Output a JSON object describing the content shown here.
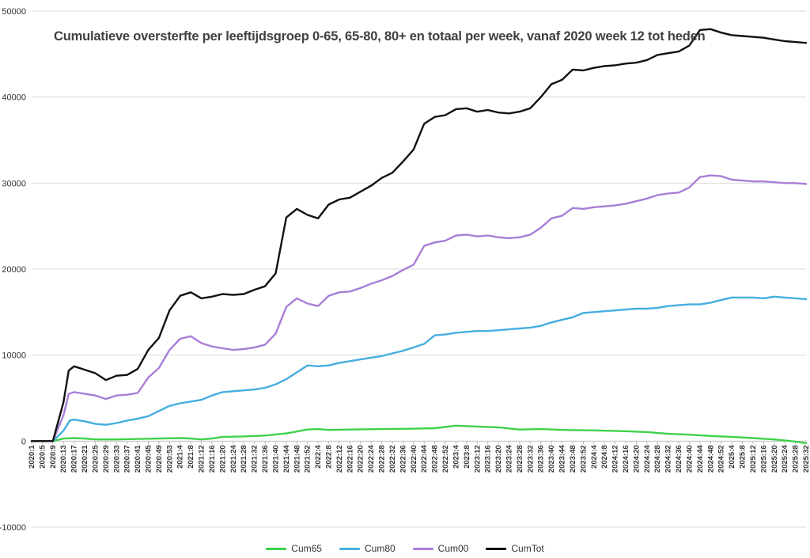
{
  "chart_data": {
    "type": "line",
    "title": "Cumulatieve oversterfte per leeftijdsgroep 0-65, 65-80, 80+ en totaal per week, vanaf 2020 week 12 tot heden",
    "xlabel": "",
    "ylabel": "",
    "ylim": [
      -10000,
      50000
    ],
    "yticks": [
      "-10000",
      "0",
      "10000",
      "20000",
      "30000",
      "40000",
      "50000"
    ],
    "grid": true,
    "legend_position": "bottom",
    "x_tick_labels": [
      "2020:1",
      "2020:5",
      "2020:9",
      "2020:13",
      "2020:17",
      "2020:21",
      "2020:25",
      "2020:29",
      "2020:33",
      "2020:37",
      "2020:41",
      "2020:45",
      "2020:49",
      "2020:53",
      "2021:4",
      "2021:8",
      "2021:12",
      "2021:16",
      "2021:20",
      "2021:24",
      "2021:28",
      "2021:32",
      "2021:36",
      "2021:40",
      "2021:44",
      "2021:48",
      "2021:52",
      "2022:4",
      "2022:8",
      "2022:12",
      "2022:16",
      "2022:20",
      "2022:24",
      "2022:28",
      "2022:32",
      "2022:36",
      "2022:40",
      "2022:44",
      "2022:48",
      "2022:52",
      "2023:4",
      "2023:8",
      "2023:12",
      "2023:16",
      "2023:20",
      "2023:24",
      "2023:28",
      "2023:32",
      "2023:36",
      "2023:40",
      "2023:44",
      "2023:48",
      "2023:52",
      "2024:4",
      "2024:8",
      "2024:12",
      "2024:16",
      "2024:20",
      "2024:24",
      "2024:28",
      "2024:32",
      "2024:36",
      "2024:40",
      "2024:44",
      "2024:48",
      "2024:52",
      "2025:4",
      "2025:8",
      "2025:12",
      "2025:16",
      "2025:20",
      "2025:24",
      "2025:28",
      "2025:32"
    ],
    "series": [
      {
        "name": "Cum65",
        "color": "#3fd14a",
        "points": [
          [
            0,
            0
          ],
          [
            2,
            0
          ],
          [
            3,
            300
          ],
          [
            4,
            350
          ],
          [
            5,
            300
          ],
          [
            6,
            200
          ],
          [
            8,
            200
          ],
          [
            10,
            250
          ],
          [
            12,
            300
          ],
          [
            14,
            350
          ],
          [
            15,
            300
          ],
          [
            16,
            200
          ],
          [
            17,
            300
          ],
          [
            18,
            500
          ],
          [
            20,
            550
          ],
          [
            22,
            650
          ],
          [
            24,
            900
          ],
          [
            26,
            1350
          ],
          [
            27,
            1400
          ],
          [
            28,
            1300
          ],
          [
            30,
            1350
          ],
          [
            33,
            1400
          ],
          [
            36,
            1450
          ],
          [
            38,
            1500
          ],
          [
            40,
            1800
          ],
          [
            42,
            1700
          ],
          [
            44,
            1600
          ],
          [
            46,
            1350
          ],
          [
            48,
            1400
          ],
          [
            50,
            1300
          ],
          [
            53,
            1250
          ],
          [
            56,
            1150
          ],
          [
            58,
            1050
          ],
          [
            60,
            850
          ],
          [
            62,
            750
          ],
          [
            64,
            600
          ],
          [
            66,
            500
          ],
          [
            68,
            350
          ],
          [
            70,
            200
          ],
          [
            72,
            -50
          ],
          [
            73,
            -250
          ]
        ]
      },
      {
        "name": "Cum80",
        "color": "#45aee0",
        "points": [
          [
            0,
            0
          ],
          [
            2,
            0
          ],
          [
            3,
            1200
          ],
          [
            3.6,
            2400
          ],
          [
            4,
            2500
          ],
          [
            5,
            2300
          ],
          [
            6,
            2000
          ],
          [
            7,
            1900
          ],
          [
            8,
            2100
          ],
          [
            9,
            2400
          ],
          [
            10,
            2600
          ],
          [
            11,
            2900
          ],
          [
            12,
            3500
          ],
          [
            13,
            4100
          ],
          [
            14,
            4400
          ],
          [
            15,
            4600
          ],
          [
            16,
            4800
          ],
          [
            17,
            5300
          ],
          [
            18,
            5700
          ],
          [
            19,
            5800
          ],
          [
            20,
            5900
          ],
          [
            21,
            6000
          ],
          [
            22,
            6200
          ],
          [
            23,
            6600
          ],
          [
            24,
            7200
          ],
          [
            25,
            8000
          ],
          [
            26,
            8800
          ],
          [
            27,
            8700
          ],
          [
            28,
            8800
          ],
          [
            29,
            9100
          ],
          [
            30,
            9300
          ],
          [
            31,
            9500
          ],
          [
            32,
            9700
          ],
          [
            33,
            9900
          ],
          [
            34,
            10200
          ],
          [
            35,
            10500
          ],
          [
            36,
            10900
          ],
          [
            37,
            11300
          ],
          [
            38,
            12300
          ],
          [
            39,
            12400
          ],
          [
            40,
            12600
          ],
          [
            41,
            12700
          ],
          [
            42,
            12800
          ],
          [
            43,
            12800
          ],
          [
            44,
            12900
          ],
          [
            45,
            13000
          ],
          [
            46,
            13100
          ],
          [
            47,
            13200
          ],
          [
            48,
            13400
          ],
          [
            49,
            13800
          ],
          [
            50,
            14100
          ],
          [
            51,
            14400
          ],
          [
            52,
            14900
          ],
          [
            53,
            15000
          ],
          [
            54,
            15100
          ],
          [
            55,
            15200
          ],
          [
            56,
            15300
          ],
          [
            57,
            15400
          ],
          [
            58,
            15400
          ],
          [
            59,
            15500
          ],
          [
            60,
            15700
          ],
          [
            61,
            15800
          ],
          [
            62,
            15900
          ],
          [
            63,
            15900
          ],
          [
            64,
            16100
          ],
          [
            65,
            16400
          ],
          [
            66,
            16700
          ],
          [
            67,
            16700
          ],
          [
            68,
            16700
          ],
          [
            69,
            16600
          ],
          [
            70,
            16800
          ],
          [
            71,
            16700
          ],
          [
            72,
            16600
          ],
          [
            73,
            16500
          ]
        ]
      },
      {
        "name": "Cum00",
        "color": "#a87ed8",
        "points": [
          [
            0,
            0
          ],
          [
            2,
            0
          ],
          [
            3,
            3000
          ],
          [
            3.5,
            5500
          ],
          [
            4,
            5700
          ],
          [
            5,
            5500
          ],
          [
            6,
            5300
          ],
          [
            7,
            4900
          ],
          [
            8,
            5300
          ],
          [
            9,
            5400
          ],
          [
            10,
            5600
          ],
          [
            11,
            7400
          ],
          [
            12,
            8500
          ],
          [
            13,
            10600
          ],
          [
            14,
            11900
          ],
          [
            15,
            12200
          ],
          [
            16,
            11400
          ],
          [
            17,
            11000
          ],
          [
            18,
            10800
          ],
          [
            19,
            10600
          ],
          [
            20,
            10700
          ],
          [
            21,
            10900
          ],
          [
            22,
            11200
          ],
          [
            23,
            12500
          ],
          [
            24,
            15600
          ],
          [
            25,
            16600
          ],
          [
            26,
            16000
          ],
          [
            27,
            15700
          ],
          [
            28,
            16900
          ],
          [
            29,
            17300
          ],
          [
            30,
            17400
          ],
          [
            31,
            17800
          ],
          [
            32,
            18300
          ],
          [
            33,
            18700
          ],
          [
            34,
            19200
          ],
          [
            35,
            19900
          ],
          [
            36,
            20500
          ],
          [
            37,
            22700
          ],
          [
            38,
            23100
          ],
          [
            39,
            23300
          ],
          [
            40,
            23900
          ],
          [
            41,
            24000
          ],
          [
            42,
            23800
          ],
          [
            43,
            23900
          ],
          [
            44,
            23700
          ],
          [
            45,
            23600
          ],
          [
            46,
            23700
          ],
          [
            47,
            24000
          ],
          [
            48,
            24800
          ],
          [
            49,
            25900
          ],
          [
            50,
            26200
          ],
          [
            51,
            27100
          ],
          [
            52,
            27000
          ],
          [
            53,
            27200
          ],
          [
            54,
            27300
          ],
          [
            55,
            27400
          ],
          [
            56,
            27600
          ],
          [
            57,
            27900
          ],
          [
            58,
            28200
          ],
          [
            59,
            28600
          ],
          [
            60,
            28800
          ],
          [
            61,
            28900
          ],
          [
            62,
            29500
          ],
          [
            63,
            30700
          ],
          [
            64,
            30900
          ],
          [
            65,
            30800
          ],
          [
            66,
            30400
          ],
          [
            67,
            30300
          ],
          [
            68,
            30200
          ],
          [
            69,
            30200
          ],
          [
            70,
            30100
          ],
          [
            71,
            30000
          ],
          [
            72,
            30000
          ],
          [
            73,
            29900
          ]
        ]
      },
      {
        "name": "CumTot",
        "color": "#111111",
        "points": [
          [
            0,
            0
          ],
          [
            2,
            0
          ],
          [
            3,
            4500
          ],
          [
            3.5,
            8200
          ],
          [
            4,
            8700
          ],
          [
            5,
            8300
          ],
          [
            6,
            7900
          ],
          [
            7,
            7100
          ],
          [
            8,
            7600
          ],
          [
            9,
            7700
          ],
          [
            10,
            8400
          ],
          [
            11,
            10600
          ],
          [
            12,
            12000
          ],
          [
            13,
            15200
          ],
          [
            14,
            16900
          ],
          [
            15,
            17300
          ],
          [
            16,
            16600
          ],
          [
            17,
            16800
          ],
          [
            18,
            17100
          ],
          [
            19,
            17000
          ],
          [
            20,
            17100
          ],
          [
            21,
            17600
          ],
          [
            22,
            18000
          ],
          [
            23,
            19500
          ],
          [
            24,
            26000
          ],
          [
            25,
            27000
          ],
          [
            26,
            26300
          ],
          [
            27,
            25900
          ],
          [
            28,
            27500
          ],
          [
            29,
            28100
          ],
          [
            30,
            28300
          ],
          [
            31,
            29000
          ],
          [
            32,
            29700
          ],
          [
            33,
            30600
          ],
          [
            34,
            31200
          ],
          [
            35,
            32500
          ],
          [
            36,
            33900
          ],
          [
            37,
            36900
          ],
          [
            38,
            37700
          ],
          [
            39,
            37900
          ],
          [
            40,
            38600
          ],
          [
            41,
            38700
          ],
          [
            42,
            38300
          ],
          [
            43,
            38500
          ],
          [
            44,
            38200
          ],
          [
            45,
            38100
          ],
          [
            46,
            38300
          ],
          [
            47,
            38700
          ],
          [
            48,
            40000
          ],
          [
            49,
            41500
          ],
          [
            50,
            42000
          ],
          [
            51,
            43200
          ],
          [
            52,
            43100
          ],
          [
            53,
            43400
          ],
          [
            54,
            43600
          ],
          [
            55,
            43700
          ],
          [
            56,
            43900
          ],
          [
            57,
            44000
          ],
          [
            58,
            44300
          ],
          [
            59,
            44900
          ],
          [
            60,
            45100
          ],
          [
            61,
            45300
          ],
          [
            62,
            46000
          ],
          [
            63,
            47800
          ],
          [
            64,
            47900
          ],
          [
            65,
            47500
          ],
          [
            66,
            47200
          ],
          [
            67,
            47100
          ],
          [
            68,
            47000
          ],
          [
            69,
            46900
          ],
          [
            70,
            46700
          ],
          [
            71,
            46500
          ],
          [
            72,
            46400
          ],
          [
            73,
            46300
          ]
        ]
      }
    ]
  }
}
